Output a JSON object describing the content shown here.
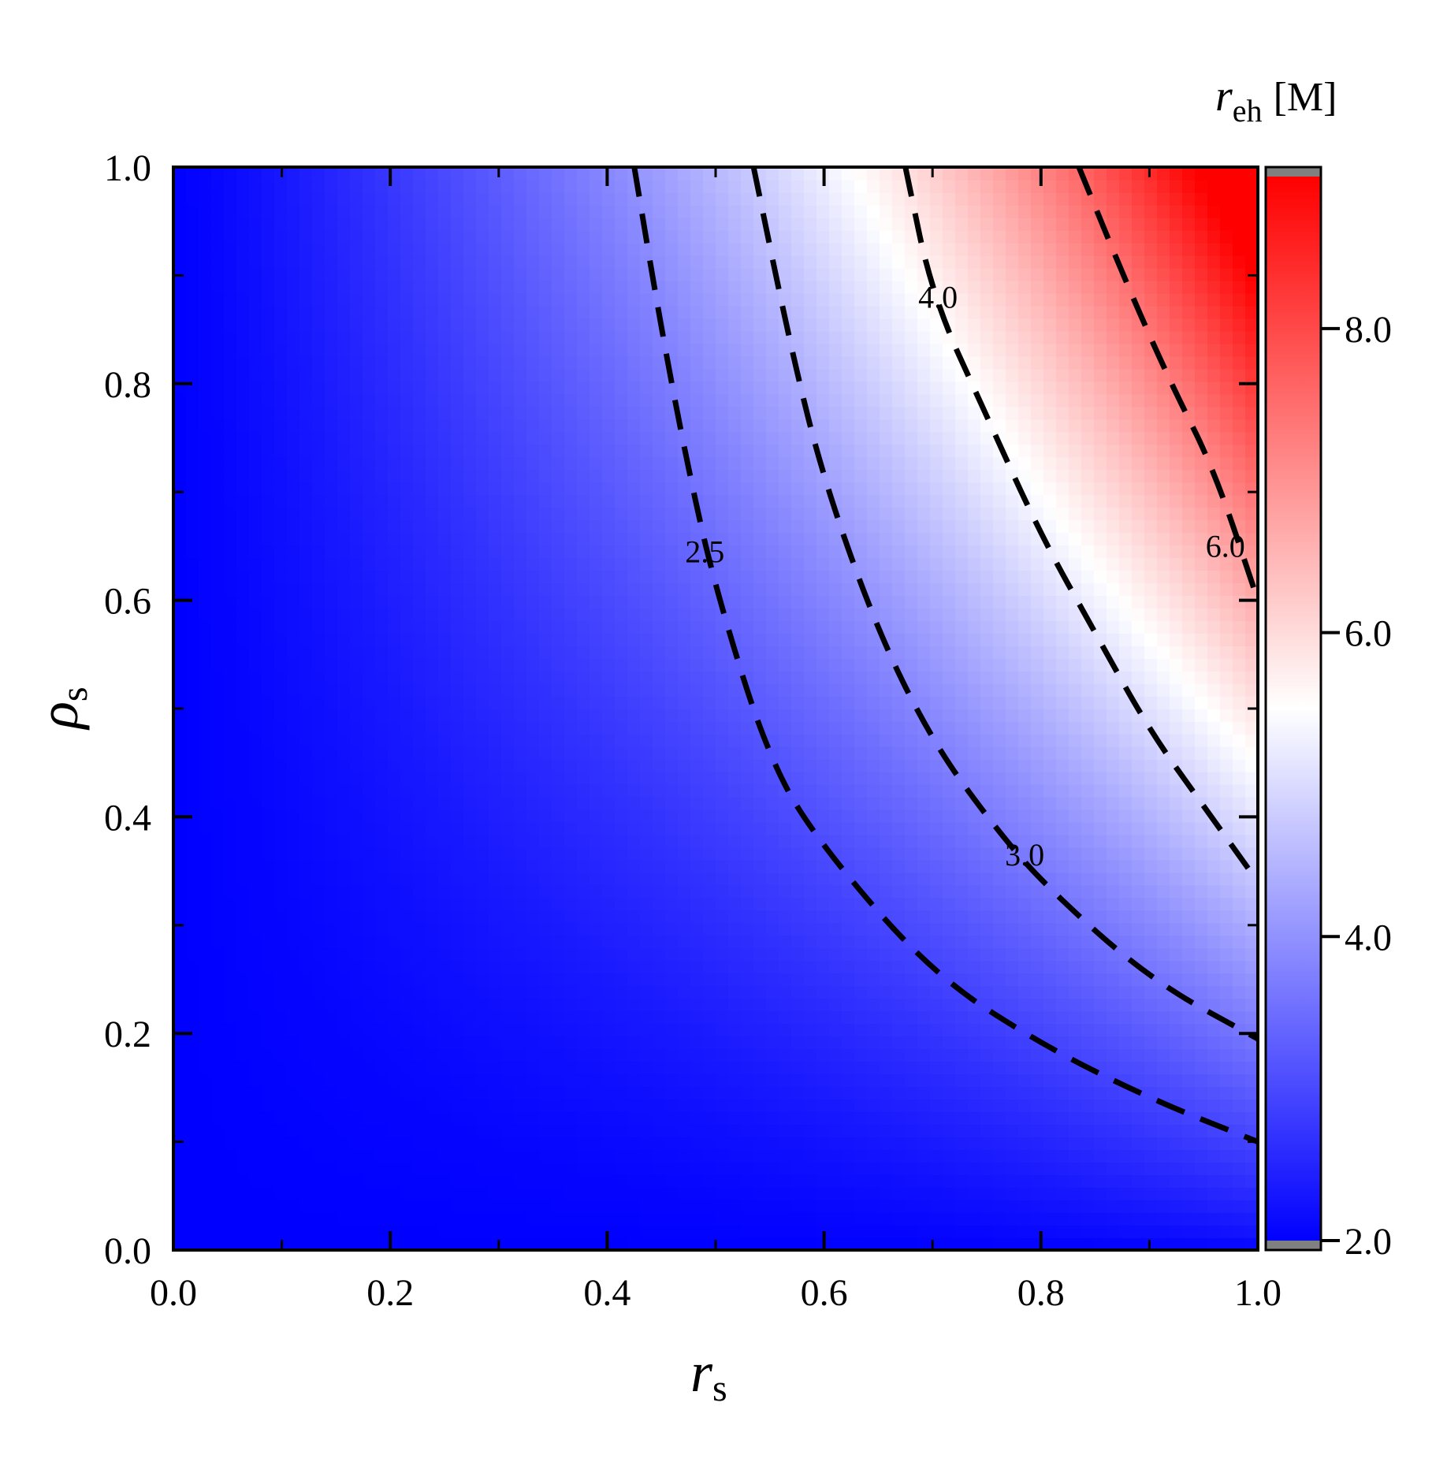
{
  "chart_data": {
    "type": "heatmap",
    "title": "",
    "xlabel": {
      "main": "r",
      "sub": "s"
    },
    "ylabel": {
      "main": "ρ",
      "sub": "s"
    },
    "xlim": [
      0.0,
      1.0
    ],
    "ylim": [
      0.0,
      1.0
    ],
    "x_ticks": [
      "0.0",
      "0.2",
      "0.4",
      "0.6",
      "0.8",
      "1.0"
    ],
    "y_ticks": [
      "0.0",
      "0.2",
      "0.4",
      "0.6",
      "0.8",
      "1.0"
    ],
    "colorbar": {
      "title": {
        "main": "r",
        "sub": "eh",
        "unit": "[M]"
      },
      "range": [
        2.0,
        9.0
      ],
      "ticks": [
        "2.0",
        "4.0",
        "6.0",
        "8.0"
      ],
      "tick_values": [
        2.0,
        4.0,
        6.0,
        8.0
      ],
      "colormap": [
        "#0000ff",
        "#ffffff",
        "#ff0000"
      ],
      "midpoint": 5.5,
      "out_of_range_color": "#808080"
    },
    "contours": [
      {
        "label": "2.5",
        "points": [
          [
            0.425,
            1.0
          ],
          [
            0.45,
            0.85
          ],
          [
            0.475,
            0.72
          ],
          [
            0.5,
            0.61
          ],
          [
            0.55,
            0.45
          ],
          [
            0.6,
            0.37
          ],
          [
            0.7,
            0.255
          ],
          [
            0.8,
            0.19
          ],
          [
            0.9,
            0.14
          ],
          [
            1.0,
            0.1
          ]
        ]
      },
      {
        "label": "3.0",
        "points": [
          [
            0.535,
            1.0
          ],
          [
            0.57,
            0.83
          ],
          [
            0.6,
            0.71
          ],
          [
            0.65,
            0.57
          ],
          [
            0.7,
            0.47
          ],
          [
            0.75,
            0.4
          ],
          [
            0.8,
            0.34
          ],
          [
            0.9,
            0.25
          ],
          [
            1.0,
            0.195
          ]
        ]
      },
      {
        "label": "4.0",
        "points": [
          [
            0.675,
            1.0
          ],
          [
            0.7,
            0.88
          ],
          [
            0.75,
            0.77
          ],
          [
            0.8,
            0.66
          ],
          [
            0.85,
            0.57
          ],
          [
            0.9,
            0.48
          ],
          [
            0.95,
            0.41
          ],
          [
            1.0,
            0.34
          ]
        ]
      },
      {
        "label": "6.0",
        "points": [
          [
            0.835,
            1.0
          ],
          [
            0.88,
            0.89
          ],
          [
            0.92,
            0.8
          ],
          [
            0.96,
            0.72
          ],
          [
            1.0,
            0.6
          ]
        ]
      }
    ]
  }
}
